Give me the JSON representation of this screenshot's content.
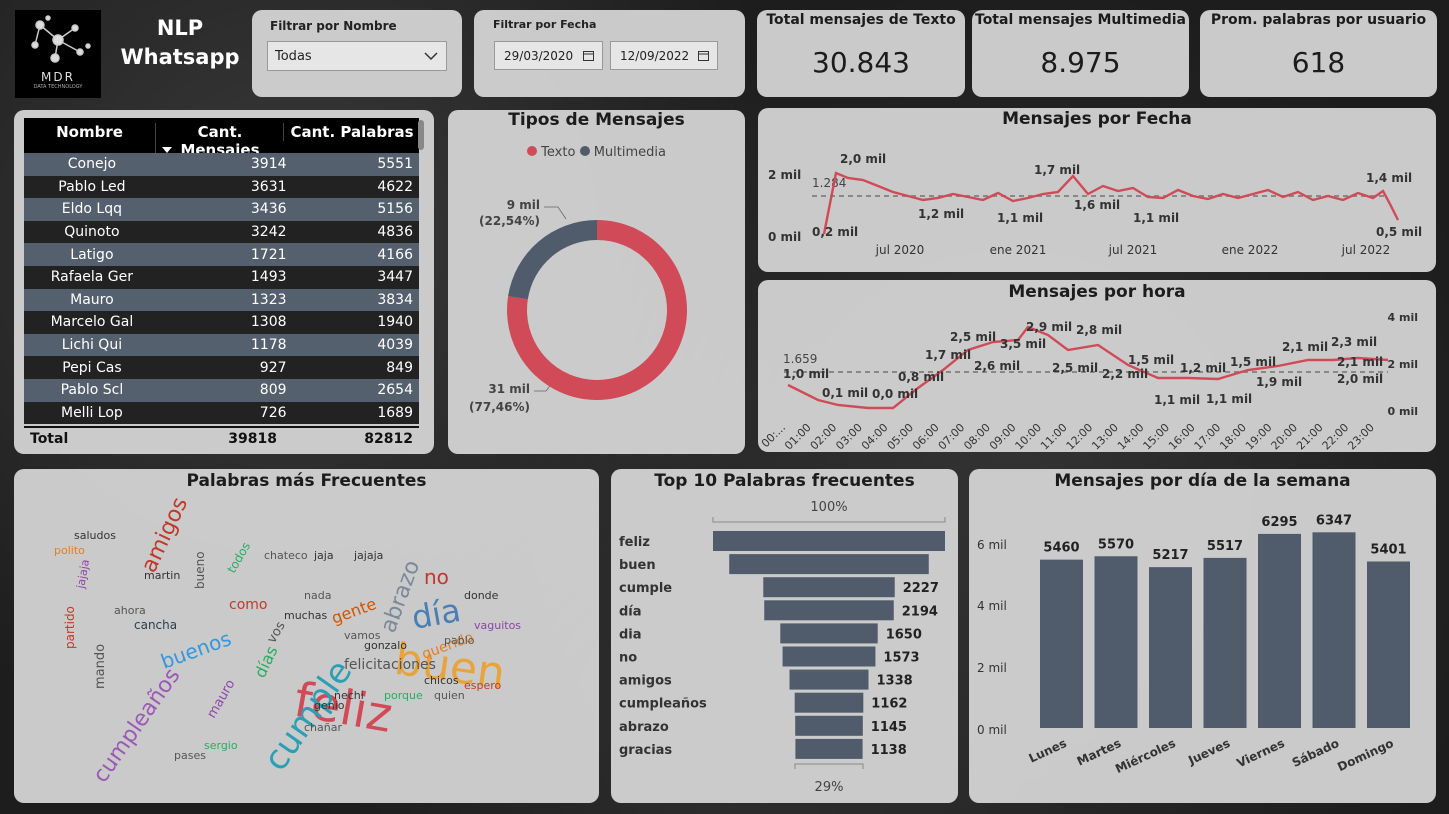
{
  "header": {
    "logo_text": "MDR",
    "logo_sub": "DATA TECHNOLOGY",
    "title_line1": "NLP",
    "title_line2": "Whatsapp"
  },
  "filter_name": {
    "label": "Filtrar por Nombre",
    "value": "Todas"
  },
  "filter_date": {
    "label": "Filtrar por Fecha",
    "start": "29/03/2020",
    "end": "12/09/2022"
  },
  "kpis": [
    {
      "title": "Total mensajes de Texto",
      "value": "30.843"
    },
    {
      "title": "Total mensajes Multimedia",
      "value": "8.975"
    },
    {
      "title": "Prom. palabras por usuario",
      "value": "618"
    }
  ],
  "table": {
    "headers": [
      "Nombre",
      "Cant. Mensajes",
      "Cant. Palabras"
    ],
    "rows": [
      [
        "Conejo",
        "3914",
        "5551"
      ],
      [
        "Pablo Led",
        "3631",
        "4622"
      ],
      [
        "Eldo Lqq",
        "3436",
        "5156"
      ],
      [
        "Quinoto",
        "3242",
        "4836"
      ],
      [
        "Latigo",
        "1721",
        "4166"
      ],
      [
        "Rafaela Ger",
        "1493",
        "3447"
      ],
      [
        "Mauro",
        "1323",
        "3834"
      ],
      [
        "Marcelo Gal",
        "1308",
        "1940"
      ],
      [
        "Lichi Qui",
        "1178",
        "4039"
      ],
      [
        "Pepi Cas",
        "927",
        "849"
      ],
      [
        "Pablo Scl",
        "809",
        "2654"
      ],
      [
        "Melli Lop",
        "726",
        "1689"
      ]
    ],
    "total": [
      "Total",
      "39818",
      "82812"
    ]
  },
  "donut": {
    "title": "Tipos de Mensajes",
    "legend": [
      "Texto",
      "Multimedia"
    ],
    "colors": [
      "#d04a57",
      "#505c6b"
    ],
    "label_multimedia": [
      "9 mil",
      "(22,54%)"
    ],
    "label_texto": [
      "31 mil",
      "(77,46%)"
    ]
  },
  "fecha_chart": {
    "title": "Mensajes por Fecha",
    "y_ticks": [
      "2 mil",
      "0 mil"
    ],
    "x_ticks": [
      "jul 2020",
      "ene 2021",
      "jul 2021",
      "ene 2022",
      "jul 2022"
    ],
    "avg_label": "1.284",
    "labels": [
      "0,2 mil",
      "2,0 mil",
      "1,2 mil",
      "1,1 mil",
      "1,7 mil",
      "1,6 mil",
      "1,1 mil",
      "1,4 mil",
      "0,5 mil"
    ]
  },
  "hora_chart": {
    "title": "Mensajes por hora",
    "y_ticks": [
      "4 mil",
      "2 mil",
      "0 mil"
    ],
    "avg_label": "1.659",
    "x_ticks": [
      "00:...",
      "01:00",
      "02:00",
      "03:00",
      "04:00",
      "05:00",
      "06:00",
      "07:00",
      "08:00",
      "09:00",
      "10:00",
      "11:00",
      "12:00",
      "13:00",
      "14:00",
      "15:00",
      "16:00",
      "17:00",
      "18:00",
      "19:00",
      "20:00",
      "21:00",
      "22:00",
      "23:00"
    ],
    "labels": [
      "1,0 mil",
      "0,1 mil",
      "0,0 mil",
      "0,8 mil",
      "1,7 mil",
      "2,5 mil",
      "2,6 mil",
      "3,5 mil",
      "2,9 mil",
      "2,5 mil",
      "2,8 mil",
      "2,2 mil",
      "1,5 mil",
      "1,1 mil",
      "1,2 mil",
      "1,1 mil",
      "1,5 mil",
      "1,9 mil",
      "2,1 mil",
      "2,3 mil",
      "2,1 mil",
      "2,0 mil"
    ]
  },
  "wordcloud": {
    "title": "Palabras más Frecuentes"
  },
  "funnel": {
    "title": "Top 10 Palabras frecuentes",
    "top_pct": "100%",
    "bottom_pct": "29%",
    "words": [
      "feliz",
      "buen",
      "cumple",
      "día",
      "dia",
      "no",
      "amigos",
      "cumpleaños",
      "abrazo",
      "gracias"
    ],
    "values": [
      3930,
      3380,
      2227,
      2194,
      1650,
      1573,
      1338,
      1162,
      1145,
      1138
    ],
    "value_labels": [
      "",
      "",
      "2227",
      "2194",
      "1650",
      "1573",
      "1338",
      "1162",
      "1145",
      "1138"
    ]
  },
  "weekday_chart": {
    "title": "Mensajes por día de la semana",
    "y_ticks": [
      "6 mil",
      "4 mil",
      "2 mil",
      "0 mil"
    ],
    "chart_data": {
      "type": "bar",
      "categories": [
        "Lunes",
        "Martes",
        "Miércoles",
        "Jueves",
        "Viernes",
        "Sábado",
        "Domingo"
      ],
      "values": [
        5460,
        5570,
        5217,
        5517,
        6295,
        6347,
        5401
      ],
      "ylim": [
        0,
        7000
      ]
    },
    "bar_color": "#505c6b"
  }
}
